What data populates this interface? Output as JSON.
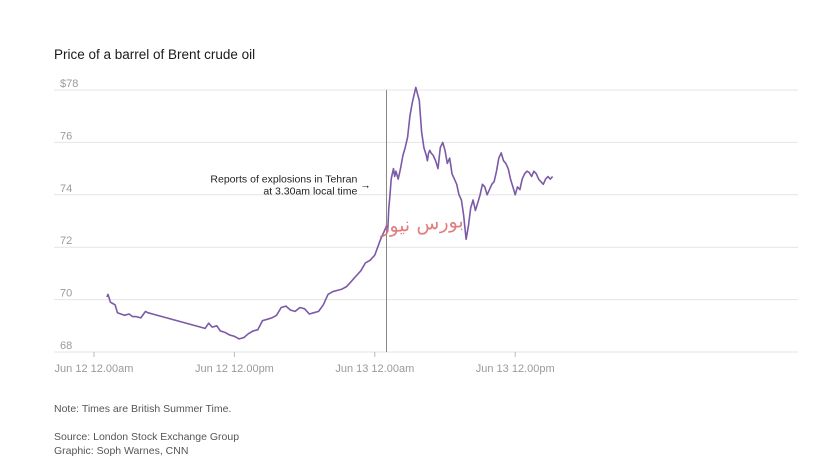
{
  "chart_data": {
    "type": "line",
    "title": "Price of a barrel of Brent crude oil",
    "xlabel": "",
    "ylabel": "",
    "ylim": [
      68,
      78
    ],
    "y_ticks": [
      {
        "value": 78,
        "label": "$78"
      },
      {
        "value": 76,
        "label": "76"
      },
      {
        "value": 74,
        "label": "74"
      },
      {
        "value": 72,
        "label": "72"
      },
      {
        "value": 70,
        "label": "70"
      },
      {
        "value": 68,
        "label": "68"
      }
    ],
    "x_unit": "hours since Jun 12 00:00 (British Summer Time)",
    "xlim": [
      0,
      60
    ],
    "x_ticks": [
      {
        "value": 0,
        "label": "Jun 12 12.00am"
      },
      {
        "value": 12,
        "label": "Jun 12 12.00pm"
      },
      {
        "value": 24,
        "label": "Jun 13 12.00am"
      },
      {
        "value": 36,
        "label": "Jun 13 12.00pm"
      }
    ],
    "grid": true,
    "color": "#7b5aa6",
    "series": [
      {
        "name": "",
        "x": [
          1.1,
          1.2,
          1.4,
          1.6,
          1.8,
          2.0,
          2.3,
          2.6,
          3.0,
          3.3,
          3.6,
          4.0,
          4.4,
          4.6,
          5.0,
          9.5,
          9.8,
          10.1,
          10.5,
          10.8,
          11.2,
          11.6,
          12.0,
          12.4,
          12.8,
          13.2,
          13.6,
          14.0,
          14.4,
          14.8,
          15.2,
          15.6,
          16.0,
          16.4,
          16.8,
          17.2,
          17.6,
          18.0,
          18.4,
          18.8,
          19.2,
          19.6,
          20.0,
          20.4,
          20.8,
          21.2,
          21.6,
          22.0,
          22.4,
          22.8,
          23.2,
          23.6,
          24.0,
          24.5,
          25.0,
          25.1,
          25.2,
          25.3,
          25.4,
          25.5,
          25.6,
          25.7,
          25.8,
          26.0,
          26.2,
          26.4,
          26.6,
          26.8,
          27.0,
          27.2,
          27.5,
          27.8,
          28.0,
          28.2,
          28.4,
          28.5,
          28.6,
          28.7,
          28.8,
          29.0,
          29.2,
          29.4,
          29.6,
          29.8,
          30.0,
          30.2,
          30.4,
          30.6,
          30.8,
          31.0,
          31.2,
          31.4,
          31.6,
          31.8,
          32.0,
          32.2,
          32.4,
          32.6,
          32.8,
          33.0,
          33.2,
          33.4,
          33.6,
          33.8,
          34.0,
          34.2,
          34.4,
          34.6,
          34.8,
          35.0,
          35.2,
          35.4,
          35.6,
          35.8,
          36.0,
          36.2,
          36.4,
          36.6,
          36.8,
          37.0,
          37.2,
          37.4,
          37.6,
          37.8,
          38.0,
          38.2,
          38.4,
          38.6,
          38.8,
          39.0,
          39.2
        ],
        "values": [
          70.1,
          70.2,
          69.9,
          69.85,
          69.8,
          69.5,
          69.45,
          69.4,
          69.45,
          69.35,
          69.35,
          69.3,
          69.55,
          69.5,
          69.45,
          68.9,
          69.1,
          68.95,
          69.0,
          68.8,
          68.75,
          68.65,
          68.6,
          68.5,
          68.55,
          68.7,
          68.8,
          68.85,
          69.2,
          69.25,
          69.3,
          69.4,
          69.7,
          69.75,
          69.6,
          69.55,
          69.7,
          69.65,
          69.45,
          69.5,
          69.55,
          69.8,
          70.2,
          70.3,
          70.35,
          70.4,
          70.5,
          70.7,
          70.9,
          71.1,
          71.4,
          71.5,
          71.7,
          72.3,
          72.8,
          72.6,
          73.5,
          74.0,
          74.6,
          74.8,
          75.0,
          74.7,
          74.9,
          74.6,
          75.0,
          75.5,
          75.8,
          76.2,
          77.0,
          77.5,
          78.1,
          77.6,
          76.4,
          75.8,
          75.5,
          75.3,
          75.6,
          75.7,
          75.6,
          75.5,
          75.3,
          75.0,
          75.8,
          76.0,
          75.7,
          75.2,
          75.4,
          74.8,
          74.6,
          74.4,
          74.0,
          73.8,
          73.2,
          72.3,
          72.8,
          73.5,
          73.8,
          73.4,
          73.7,
          74.0,
          74.4,
          74.3,
          74.0,
          74.2,
          74.4,
          74.5,
          74.9,
          75.4,
          75.6,
          75.3,
          75.2,
          75.0,
          74.6,
          74.3,
          74.0,
          74.3,
          74.2,
          74.6,
          74.8,
          74.9,
          74.85,
          74.7,
          74.9,
          74.8,
          74.6,
          74.5,
          74.4,
          74.6,
          74.7,
          74.6,
          74.7
        ]
      }
    ],
    "event_line": {
      "x": 25.0
    },
    "annotation": {
      "line1": "Reports of explosions in Tehran",
      "line2": "at 3.30am local time",
      "arrow": "→",
      "x": 24.9,
      "y": 74.4
    }
  },
  "notes": {
    "times": "Note: Times are British Summer Time.",
    "source": "Source: London Stock Exchange Group",
    "graphic": "Graphic: Soph Warnes, CNN"
  },
  "watermark": "بورس نیوز"
}
